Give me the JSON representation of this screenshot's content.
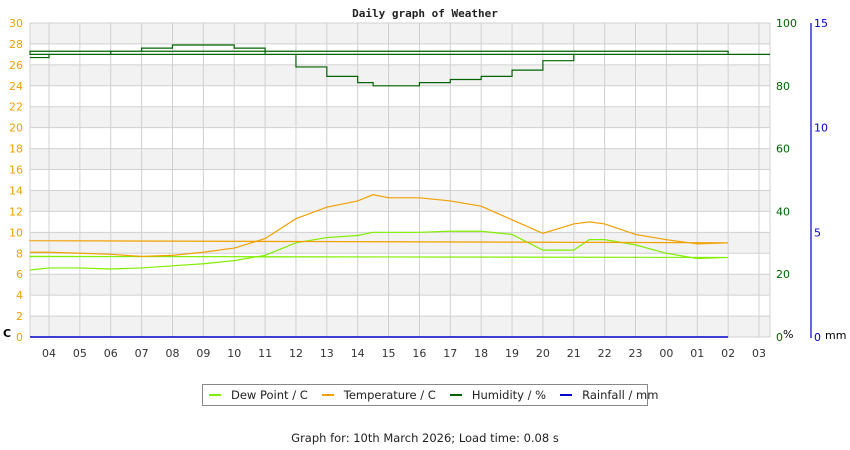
{
  "page": {
    "title": "Daily graph of Weather",
    "footer": "Graph for: 10th March 2026; Load time: 0.08 s"
  },
  "colors": {
    "dew_point": "#80ee00",
    "temperature": "#f0a000",
    "humidity": "#006400",
    "rainfall": "#0000cc",
    "left_axis": "#f0a000",
    "humidity_axis": "#006400",
    "rain_axis": "#0000cc",
    "grid": "#d0d0d0",
    "band": "#f2f2f2"
  },
  "legend": [
    {
      "label": "Dew Point / C",
      "color": "#80ee00"
    },
    {
      "label": "Temperature / C",
      "color": "#f0a000"
    },
    {
      "label": "Humidity / %",
      "color": "#006400"
    },
    {
      "label": "Rainfall / mm",
      "color": "#0000cc"
    }
  ],
  "axes": {
    "left_unit": "C",
    "humidity_unit": "%",
    "rain_unit": "mm"
  },
  "chart_data": {
    "type": "line",
    "title": "Daily graph of Weather",
    "xlabel": "",
    "x_tick_labels": [
      "04",
      "05",
      "06",
      "07",
      "08",
      "09",
      "10",
      "11",
      "12",
      "13",
      "14",
      "15",
      "16",
      "17",
      "18",
      "19",
      "20",
      "21",
      "22",
      "23",
      "00",
      "01",
      "02",
      "03"
    ],
    "y_left": {
      "label": "C",
      "ticks": [
        0,
        2,
        4,
        6,
        8,
        10,
        12,
        14,
        16,
        18,
        20,
        22,
        24,
        26,
        28,
        30
      ],
      "range": [
        0,
        30
      ]
    },
    "y_humidity": {
      "label": "%",
      "ticks": [
        0,
        20,
        40,
        60,
        80,
        100
      ],
      "range": [
        0,
        100
      ]
    },
    "y_rain": {
      "label": "mm",
      "ticks": [
        0,
        5,
        10,
        15
      ],
      "range": [
        0,
        15
      ]
    },
    "grid": true,
    "legend_position": "bottom",
    "x": [
      "03:23",
      "04:00",
      "05:00",
      "06:00",
      "07:00",
      "08:00",
      "09:00",
      "10:00",
      "11:00",
      "12:00",
      "13:00",
      "14:00",
      "14:30",
      "15:00",
      "16:00",
      "17:00",
      "18:00",
      "19:00",
      "20:00",
      "21:00",
      "21:30",
      "22:00",
      "23:00",
      "00:00",
      "01:00",
      "02:00",
      "03:00",
      "03:20"
    ],
    "series": [
      {
        "name": "Dew Point / C",
        "axis": "left",
        "values": [
          6.4,
          6.6,
          6.6,
          6.5,
          6.6,
          6.8,
          7.0,
          7.3,
          7.8,
          9.0,
          9.5,
          9.7,
          10.0,
          10.0,
          10.0,
          10.1,
          10.1,
          9.8,
          8.3,
          8.3,
          9.3,
          9.3,
          8.8,
          8.0,
          7.5,
          7.6,
          7.7,
          7.6
        ]
      },
      {
        "name": "Temperature / C",
        "axis": "left",
        "values": [
          8.1,
          8.1,
          8.0,
          7.9,
          7.7,
          7.8,
          8.1,
          8.5,
          9.4,
          11.3,
          12.4,
          13.0,
          13.6,
          13.3,
          13.3,
          13.0,
          12.5,
          11.2,
          9.9,
          10.8,
          11.0,
          10.8,
          9.8,
          9.3,
          8.9,
          9.0,
          9.2,
          9.3
        ]
      },
      {
        "name": "Humidity / %",
        "axis": "humidity",
        "values": [
          89,
          90,
          90,
          91,
          92,
          93,
          93,
          92,
          90,
          86,
          83,
          81,
          80,
          80,
          81,
          82,
          83,
          85,
          88,
          90,
          90,
          90,
          90,
          90,
          90,
          91,
          91,
          90
        ]
      },
      {
        "name": "Rainfall / mm",
        "axis": "rain",
        "values": [
          0,
          0,
          0,
          0,
          0,
          0,
          0,
          0,
          0,
          0,
          0,
          0,
          0,
          0,
          0,
          0,
          0,
          0,
          0,
          0,
          0,
          0,
          0,
          0,
          0,
          0,
          0,
          0
        ]
      }
    ]
  }
}
